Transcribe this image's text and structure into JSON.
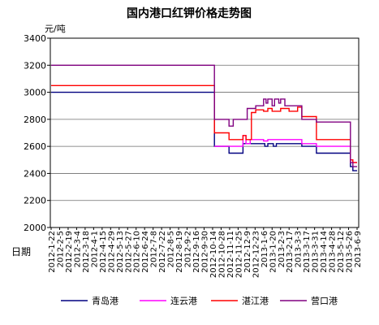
{
  "chart_data": {
    "type": "line",
    "title": "国内港口红钾价格走势图",
    "ylabel": "元/吨",
    "xlabel": "日期",
    "ylim": [
      2000,
      3400
    ],
    "y_ticks": [
      2000,
      2200,
      2400,
      2600,
      2800,
      3000,
      3200,
      3400
    ],
    "xlim": [
      "2012-1-22",
      "2013-6-9"
    ],
    "x_ticks": [
      "2012-1-22",
      "2012-2-5",
      "2012-2-19",
      "2012-3-4",
      "2012-3-18",
      "2012-4-1",
      "2012-4-15",
      "2012-4-29",
      "2012-5-13",
      "2012-5-27",
      "2012-6-10",
      "2012-6-24",
      "2012-7-8",
      "2012-7-22",
      "2012-8-5",
      "2012-8-19",
      "2012-9-2",
      "2012-9-16",
      "2012-9-30",
      "2012-10-14",
      "2012-10-28",
      "2012-11-11",
      "2012-11-25",
      "2012-12-9",
      "2012-12-23",
      "2013-1-6",
      "2013-1-20",
      "2013-2-3",
      "2013-2-17",
      "2013-3-3",
      "2013-3-17",
      "2013-3-31",
      "2013-4-14",
      "2013-4-28",
      "2013-5-12",
      "2013-5-26",
      "2013-6-9"
    ],
    "grid": "horizontal",
    "legend": "bottom",
    "series": [
      {
        "name": "青岛港",
        "color": "#000080",
        "points": [
          [
            "2012-1-22",
            3000
          ],
          [
            "2012-10-17",
            2600
          ],
          [
            "2012-11-10",
            2550
          ],
          [
            "2012-12-3",
            2620
          ],
          [
            "2013-1-8",
            2600
          ],
          [
            "2013-1-13",
            2620
          ],
          [
            "2013-1-22",
            2600
          ],
          [
            "2013-1-27",
            2620
          ],
          [
            "2013-3-10",
            2600
          ],
          [
            "2013-4-3",
            2550
          ],
          [
            "2013-5-29",
            2450
          ],
          [
            "2013-6-2",
            2420
          ],
          [
            "2013-6-9",
            2420
          ]
        ]
      },
      {
        "name": "连云港",
        "color": "#FF00FF",
        "points": [
          [
            "2012-10-17",
            2600
          ],
          [
            "2012-12-3",
            2680
          ],
          [
            "2012-12-8",
            2620
          ],
          [
            "2012-12-15",
            2650
          ],
          [
            "2013-1-6",
            2640
          ],
          [
            "2013-1-13",
            2650
          ],
          [
            "2013-3-10",
            2620
          ],
          [
            "2013-4-3",
            2600
          ],
          [
            "2013-5-29",
            2500
          ],
          [
            "2013-6-2",
            2480
          ],
          [
            "2013-6-9",
            2480
          ]
        ]
      },
      {
        "name": "湛江港",
        "color": "#FF0000",
        "points": [
          [
            "2012-1-22",
            3050
          ],
          [
            "2012-10-17",
            2700
          ],
          [
            "2012-11-10",
            2650
          ],
          [
            "2012-12-3",
            2680
          ],
          [
            "2012-12-8",
            2650
          ],
          [
            "2012-12-17",
            2850
          ],
          [
            "2012-12-24",
            2870
          ],
          [
            "2013-1-6",
            2860
          ],
          [
            "2013-1-13",
            2880
          ],
          [
            "2013-1-20",
            2860
          ],
          [
            "2013-2-3",
            2880
          ],
          [
            "2013-2-17",
            2860
          ],
          [
            "2013-3-3",
            2890
          ],
          [
            "2013-3-10",
            2820
          ],
          [
            "2013-4-3",
            2650
          ],
          [
            "2013-5-29",
            2500
          ],
          [
            "2013-6-2",
            2480
          ],
          [
            "2013-6-9",
            2480
          ]
        ]
      },
      {
        "name": "营口港",
        "color": "#800080",
        "points": [
          [
            "2012-1-22",
            3200
          ],
          [
            "2012-10-17",
            2800
          ],
          [
            "2012-11-10",
            2750
          ],
          [
            "2012-11-17",
            2800
          ],
          [
            "2012-12-10",
            2880
          ],
          [
            "2012-12-24",
            2900
          ],
          [
            "2013-1-6",
            2950
          ],
          [
            "2013-1-10",
            2920
          ],
          [
            "2013-1-13",
            2950
          ],
          [
            "2013-1-20",
            2900
          ],
          [
            "2013-1-24",
            2950
          ],
          [
            "2013-1-31",
            2920
          ],
          [
            "2013-2-3",
            2950
          ],
          [
            "2013-2-10",
            2900
          ],
          [
            "2013-3-10",
            2800
          ],
          [
            "2013-4-3",
            2780
          ],
          [
            "2013-5-29",
            2480
          ],
          [
            "2013-6-2",
            2450
          ],
          [
            "2013-6-9",
            2450
          ]
        ]
      }
    ]
  }
}
